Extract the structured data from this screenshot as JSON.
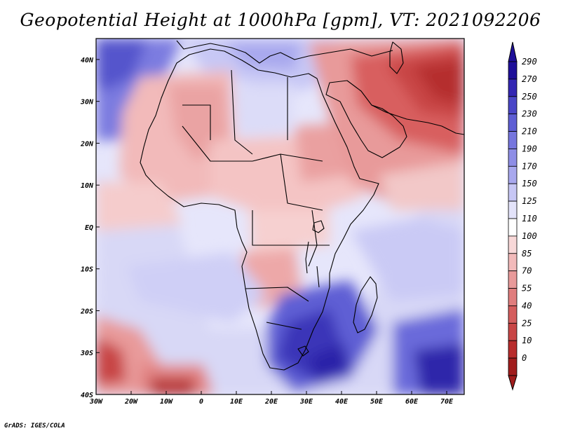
{
  "title": "Geopotential Height at 1000hPa [gpm], VT: 2021092206",
  "credit": "GrADS: IGES/COLA",
  "map": {
    "lon_labels": [
      "30W",
      "20W",
      "10W",
      "0",
      "10E",
      "20E",
      "30E",
      "40E",
      "50E",
      "60E",
      "70E"
    ],
    "lat_labels": [
      "40N",
      "30N",
      "20N",
      "10N",
      "EQ",
      "10S",
      "20S",
      "30S",
      "40S"
    ],
    "lon_range": [
      -30,
      75
    ],
    "lat_range": [
      -40,
      45
    ],
    "colorbar": {
      "levels": [
        "290",
        "270",
        "250",
        "230",
        "210",
        "190",
        "170",
        "150",
        "125",
        "110",
        "100",
        "85",
        "70",
        "55",
        "40",
        "25",
        "10",
        "0"
      ],
      "colors": [
        "#1e0f99",
        "#3326b3",
        "#4a46c7",
        "#5e5ed4",
        "#7676de",
        "#8e8ee6",
        "#a8a8ee",
        "#c7c7f5",
        "#e3e3fa",
        "#ffffff",
        "#f8d8d8",
        "#f2baba",
        "#e89a9a",
        "#e07d7d",
        "#d45d5d",
        "#c84545",
        "#b82c2c",
        "#a01c1c"
      ]
    },
    "field_regions": [
      {
        "name": "field-north-atlantic-high",
        "color": "#6666d6"
      },
      {
        "name": "field-saharan-low",
        "color": "#f0b8b8"
      },
      {
        "name": "field-middle-east-low",
        "color": "#d85a5a"
      },
      {
        "name": "field-south-atlantic-low",
        "color": "#c03a3a"
      },
      {
        "name": "field-southern-africa-high",
        "color": "#3a35b8"
      },
      {
        "name": "field-indian-ocean-high",
        "color": "#2a1fa8"
      }
    ]
  }
}
